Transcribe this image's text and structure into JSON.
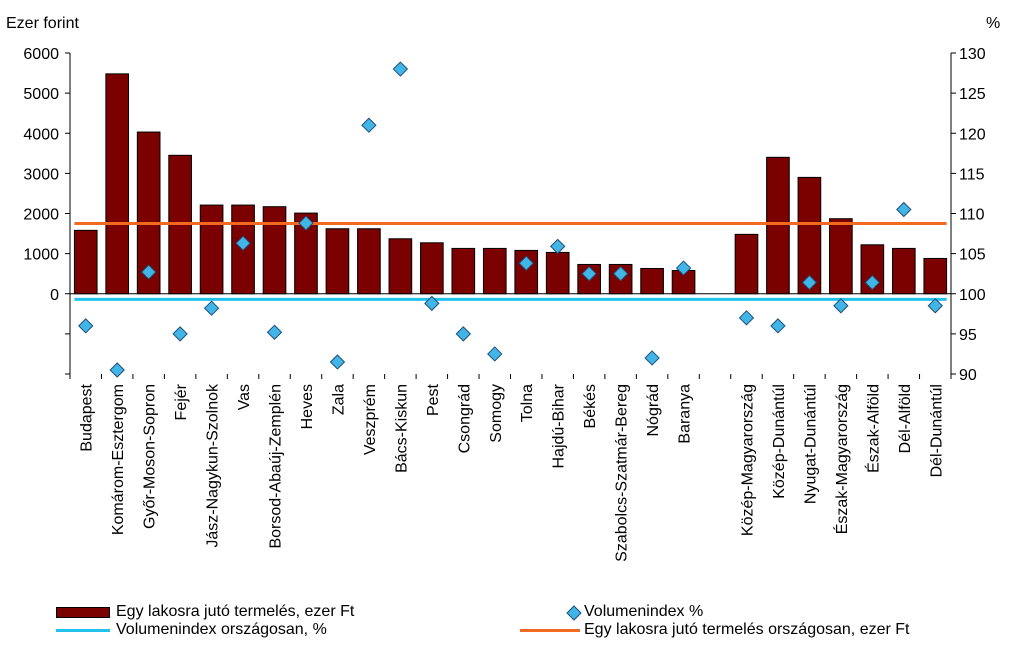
{
  "chart_data": {
    "type": "bar",
    "left_axis_unit": "Ezer forint",
    "right_axis_unit": "%",
    "left_axis": {
      "min": -2000,
      "max": 6000,
      "ticks": [
        0,
        1000,
        2000,
        3000,
        4000,
        5000,
        6000
      ]
    },
    "right_axis": {
      "min": 90,
      "max": 130,
      "ticks": [
        90,
        95,
        100,
        105,
        110,
        115,
        120,
        125,
        130
      ]
    },
    "grid": false,
    "categories": [
      "Budapest",
      "Komárom-Esztergom",
      "Győr-Moson-Sopron",
      "Fejér",
      "Jász-Nagykun-Szolnok",
      "Vas",
      "Borsod-Abaúj-Zemplén",
      "Heves",
      "Zala",
      "Veszprém",
      "Bács-Kiskun",
      "Pest",
      "Csongrád",
      "Somogy",
      "Tolna",
      "Hajdú-Bihar",
      "Békés",
      "Szabolcs-Szatmár-Bereg",
      "Nógrád",
      "Baranya",
      "",
      "Közép-Magyarország",
      "Közép-Dunántúl",
      "Nyugat-Dunántúl",
      "Észak-Magyarország",
      "Észak-Alföld",
      "Dél-Alföld",
      "Dél-Dunántúl"
    ],
    "series": [
      {
        "name": "Egy lakosra jutó termelés, ezer Ft",
        "type": "bar",
        "axis": "left",
        "color": "#7b0000",
        "values": [
          1580,
          5480,
          4030,
          3450,
          2210,
          2210,
          2170,
          2010,
          1620,
          1620,
          1370,
          1270,
          1130,
          1130,
          1080,
          1030,
          730,
          730,
          630,
          580,
          null,
          1480,
          3400,
          2900,
          1870,
          1220,
          1130,
          880
        ]
      },
      {
        "name": "Volumenindex %",
        "type": "scatter",
        "axis": "right",
        "color": "#41b6e6",
        "values": [
          96.0,
          90.5,
          102.7,
          95.0,
          98.2,
          106.3,
          95.2,
          108.8,
          91.5,
          121.0,
          128.0,
          98.8,
          95.0,
          92.5,
          103.8,
          105.9,
          102.5,
          102.5,
          92.0,
          103.2,
          null,
          97.0,
          96.0,
          101.4,
          98.5,
          101.4,
          110.5,
          98.5
        ]
      },
      {
        "name": "Volumenindex országosan, %",
        "type": "line",
        "axis": "right",
        "color": "#21c3ee",
        "values": [
          99.3,
          99.3,
          99.3,
          99.3,
          99.3,
          99.3,
          99.3,
          99.3,
          99.3,
          99.3,
          99.3,
          99.3,
          99.3,
          99.3,
          99.3,
          99.3,
          99.3,
          99.3,
          99.3,
          99.3,
          99.3,
          99.3,
          99.3,
          99.3,
          99.3,
          99.3,
          99.3,
          99.3
        ]
      },
      {
        "name": "Egy lakosra jutó termelés országosan, ezer Ft",
        "type": "line",
        "axis": "left",
        "color": "#f26a21",
        "values": [
          1750,
          1750,
          1750,
          1750,
          1750,
          1750,
          1750,
          1750,
          1750,
          1750,
          1750,
          1750,
          1750,
          1750,
          1750,
          1750,
          1750,
          1750,
          1750,
          1750,
          1750,
          1750,
          1750,
          1750,
          1750,
          1750,
          1750,
          1750
        ]
      }
    ]
  },
  "legend": {
    "bar_label": "Egy lakosra jutó termelés, ezer Ft",
    "marker_label": "Volumenindex %",
    "line_blue_label": "Volumenindex országosan, %",
    "line_orange_label": "Egy lakosra jutó termelés országosan, ezer Ft"
  }
}
